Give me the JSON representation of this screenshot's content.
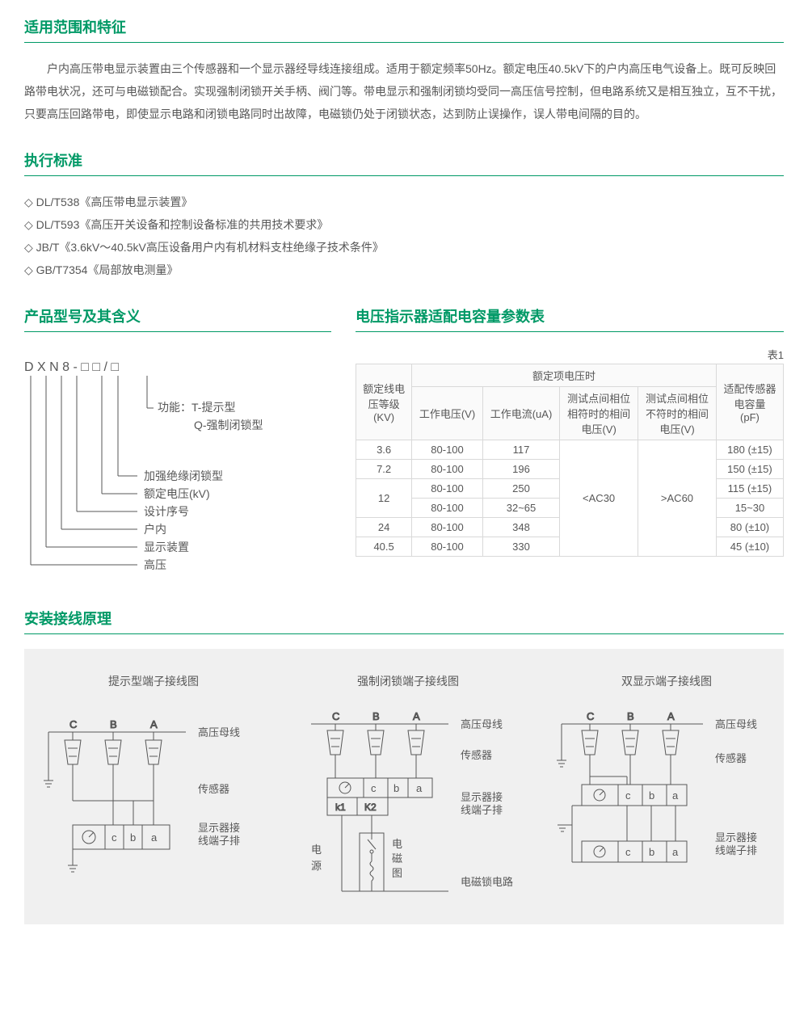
{
  "colors": {
    "accent": "#009966",
    "text": "#575757",
    "border": "#d9d9d9",
    "panel_bg": "#f0f0f0",
    "page_bg": "#ffffff"
  },
  "scope": {
    "title": "适用范围和特征",
    "body": "户内高压带电显示装置由三个传感器和一个显示器经导线连接组成。适用于额定频率50Hz。额定电压40.5kV下的户内高压电气设备上。既可反映回路带电状况，还可与电磁锁配合。实现强制闭锁开关手柄、阀门等。带电显示和强制闭锁均受同一高压信号控制，但电路系统又是相互独立，互不干扰，只要高压回路带电，即使显示电路和闭锁电路同时出故障，电磁锁仍处于闭锁状态，达到防止误操作，误人带电间隔的目的。"
  },
  "standards": {
    "title": "执行标准",
    "items": [
      "DL/T538《高压带电显示装置》",
      "DL/T593《高压开关设备和控制设备标准的共用技术要求》",
      "JB/T《3.6kV～40.5kV高压设备用户内有机材料支柱绝缘子技术条件》",
      "GB/T7354《局部放电测量》"
    ]
  },
  "model": {
    "title": "产品型号及其含义",
    "code": "D X N 8 - □ □ / □",
    "legend": [
      "功能：T-提示型",
      "Q-强制闭锁型",
      "加强绝缘闭锁型",
      "额定电压(kV)",
      "设计序号",
      "户内",
      "显示装置",
      "高压"
    ]
  },
  "params": {
    "title": "电压指示器适配电容量参数表",
    "table_no": "表1",
    "type": "table",
    "header": {
      "c1": "额定线电\n压等级\n(KV)",
      "group": "额定项电压时",
      "c2": "工作电压(V)",
      "c3": "工作电流(uA)",
      "c4": "测试点间相位\n相符时的相间\n电压(V)",
      "c5": "测试点间相位\n不符时的相间\n电压(V)",
      "c6": "适配传感器\n电容量\n(pF)"
    },
    "rows": [
      {
        "kv": "3.6",
        "wv": "80-100",
        "wa": "117",
        "cap": "180 (±15)"
      },
      {
        "kv": "7.2",
        "wv": "80-100",
        "wa": "196",
        "cap": "150 (±15)"
      },
      {
        "kv_rowspan_label": "12",
        "wv": "80-100",
        "wa": "250",
        "cap": "115 (±15)"
      },
      {
        "kv": "",
        "wv": "80-100",
        "wa": "32~65",
        "cap": "15~30"
      },
      {
        "kv": "24",
        "wv": "80-100",
        "wa": "348",
        "cap": "80 (±10)"
      },
      {
        "kv": "40.5",
        "wv": "80-100",
        "wa": "330",
        "cap": "45 (±10)"
      }
    ],
    "merged": {
      "ac_lt": "<AC30",
      "ac_gt": ">AC60"
    }
  },
  "wiring": {
    "title": "安装接线原理",
    "diagrams": [
      {
        "title": "提示型端子接线图",
        "phases": [
          "C",
          "B",
          "A"
        ],
        "right_labels": [
          "高压母线",
          "传感器",
          "显示器接\n线端子排"
        ],
        "terminal_labels": [
          "c",
          "b",
          "a"
        ]
      },
      {
        "title": "强制闭锁端子接线图",
        "phases": [
          "C",
          "B",
          "A"
        ],
        "right_labels": [
          "高压母线",
          "传感器",
          "显示器接\n线端子排",
          "电磁锁电路"
        ],
        "terminal_labels": [
          "c",
          "b",
          "a"
        ],
        "k_labels": [
          "k1",
          "K2"
        ],
        "left_labels": [
          "电",
          "源"
        ],
        "mid_labels": [
          "电",
          "磁",
          "图"
        ]
      },
      {
        "title": "双显示端子接线图",
        "phases": [
          "C",
          "B",
          "A"
        ],
        "right_labels": [
          "高压母线",
          "传感器",
          "显示器接\n线端子排"
        ],
        "terminal_labels": [
          "c",
          "b",
          "a"
        ]
      }
    ]
  }
}
